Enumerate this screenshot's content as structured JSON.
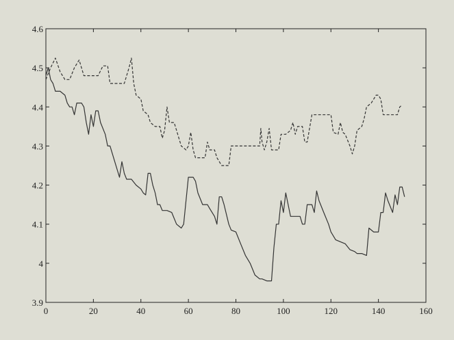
{
  "chart_data": {
    "type": "line",
    "title": "",
    "xlabel": "",
    "ylabel": "",
    "xlim": [
      0,
      160
    ],
    "ylim": [
      3.9,
      4.6
    ],
    "grid": false,
    "legend": "none",
    "colors": {
      "background": "#deded4",
      "axes": "#222222",
      "series": "#333333"
    },
    "x_ticks": [
      {
        "value": 0,
        "label": "0"
      },
      {
        "value": 20,
        "label": "20"
      },
      {
        "value": 40,
        "label": "40"
      },
      {
        "value": 60,
        "label": "60"
      },
      {
        "value": 80,
        "label": "80"
      },
      {
        "value": 100,
        "label": "100"
      },
      {
        "value": 120,
        "label": "120"
      },
      {
        "value": 140,
        "label": "140"
      },
      {
        "value": 160,
        "label": "160"
      }
    ],
    "y_ticks": [
      {
        "value": 3.9,
        "label": "3.9"
      },
      {
        "value": 4.0,
        "label": "4"
      },
      {
        "value": 4.1,
        "label": "4.1"
      },
      {
        "value": 4.2,
        "label": "4.2"
      },
      {
        "value": 4.3,
        "label": "4.3"
      },
      {
        "value": 4.4,
        "label": "4.4"
      },
      {
        "value": 4.5,
        "label": "4.5"
      },
      {
        "value": 4.6,
        "label": "4.6"
      }
    ],
    "series": [
      {
        "style": "dashed",
        "points": [
          [
            0,
            4.47
          ],
          [
            2,
            4.5
          ],
          [
            4,
            4.525
          ],
          [
            6,
            4.49
          ],
          [
            8,
            4.47
          ],
          [
            10,
            4.47
          ],
          [
            12,
            4.5
          ],
          [
            14,
            4.52
          ],
          [
            16,
            4.48
          ],
          [
            19,
            4.48
          ],
          [
            22,
            4.48
          ],
          [
            24,
            4.505
          ],
          [
            26,
            4.505
          ],
          [
            27,
            4.46
          ],
          [
            29,
            4.46
          ],
          [
            31,
            4.46
          ],
          [
            33,
            4.46
          ],
          [
            35,
            4.5
          ],
          [
            36,
            4.525
          ],
          [
            37,
            4.46
          ],
          [
            38,
            4.43
          ],
          [
            40,
            4.42
          ],
          [
            41,
            4.39
          ],
          [
            43,
            4.38
          ],
          [
            44,
            4.36
          ],
          [
            46,
            4.35
          ],
          [
            48,
            4.35
          ],
          [
            49,
            4.32
          ],
          [
            50,
            4.34
          ],
          [
            51,
            4.4
          ],
          [
            52,
            4.36
          ],
          [
            54,
            4.36
          ],
          [
            55,
            4.34
          ],
          [
            57,
            4.3
          ],
          [
            59,
            4.29
          ],
          [
            60,
            4.3
          ],
          [
            61,
            4.335
          ],
          [
            62,
            4.29
          ],
          [
            63,
            4.27
          ],
          [
            65,
            4.27
          ],
          [
            67,
            4.27
          ],
          [
            68,
            4.31
          ],
          [
            69,
            4.29
          ],
          [
            71,
            4.29
          ],
          [
            72,
            4.27
          ],
          [
            74,
            4.25
          ],
          [
            76,
            4.25
          ],
          [
            77,
            4.25
          ],
          [
            78,
            4.3
          ],
          [
            80,
            4.3
          ],
          [
            83,
            4.3
          ],
          [
            85,
            4.3
          ],
          [
            88,
            4.3
          ],
          [
            90,
            4.3
          ],
          [
            90.5,
            4.345
          ],
          [
            91,
            4.31
          ],
          [
            92,
            4.29
          ],
          [
            93,
            4.31
          ],
          [
            94,
            4.345
          ],
          [
            95,
            4.29
          ],
          [
            96,
            4.29
          ],
          [
            98,
            4.29
          ],
          [
            99,
            4.33
          ],
          [
            101,
            4.33
          ],
          [
            103,
            4.34
          ],
          [
            104,
            4.36
          ],
          [
            105,
            4.33
          ],
          [
            106,
            4.35
          ],
          [
            108,
            4.35
          ],
          [
            109,
            4.31
          ],
          [
            110,
            4.31
          ],
          [
            112,
            4.38
          ],
          [
            114,
            4.38
          ],
          [
            116,
            4.38
          ],
          [
            118,
            4.38
          ],
          [
            120,
            4.38
          ],
          [
            121,
            4.335
          ],
          [
            123,
            4.33
          ],
          [
            124,
            4.36
          ],
          [
            125,
            4.335
          ],
          [
            126,
            4.33
          ],
          [
            128,
            4.3
          ],
          [
            129,
            4.28
          ],
          [
            130,
            4.3
          ],
          [
            131,
            4.34
          ],
          [
            133,
            4.35
          ],
          [
            134,
            4.37
          ],
          [
            135,
            4.4
          ],
          [
            137,
            4.41
          ],
          [
            138,
            4.42
          ],
          [
            139,
            4.43
          ],
          [
            140,
            4.43
          ],
          [
            141,
            4.42
          ],
          [
            142,
            4.38
          ],
          [
            144,
            4.38
          ],
          [
            146,
            4.38
          ],
          [
            148,
            4.38
          ],
          [
            149,
            4.4
          ],
          [
            150,
            4.405
          ]
        ]
      },
      {
        "style": "solid",
        "points": [
          [
            0,
            4.48
          ],
          [
            1,
            4.5
          ],
          [
            2,
            4.47
          ],
          [
            3,
            4.46
          ],
          [
            4,
            4.44
          ],
          [
            6,
            4.44
          ],
          [
            8,
            4.43
          ],
          [
            9,
            4.41
          ],
          [
            10,
            4.4
          ],
          [
            11,
            4.4
          ],
          [
            12,
            4.38
          ],
          [
            13,
            4.41
          ],
          [
            15,
            4.41
          ],
          [
            16,
            4.4
          ],
          [
            17,
            4.36
          ],
          [
            18,
            4.33
          ],
          [
            19,
            4.38
          ],
          [
            20,
            4.35
          ],
          [
            21,
            4.39
          ],
          [
            22,
            4.39
          ],
          [
            23,
            4.36
          ],
          [
            25,
            4.33
          ],
          [
            26,
            4.3
          ],
          [
            27,
            4.3
          ],
          [
            29,
            4.26
          ],
          [
            31,
            4.22
          ],
          [
            32,
            4.26
          ],
          [
            33,
            4.23
          ],
          [
            34,
            4.215
          ],
          [
            36,
            4.215
          ],
          [
            38,
            4.2
          ],
          [
            40,
            4.19
          ],
          [
            41,
            4.18
          ],
          [
            42,
            4.175
          ],
          [
            43,
            4.23
          ],
          [
            44,
            4.23
          ],
          [
            45,
            4.2
          ],
          [
            46,
            4.18
          ],
          [
            47,
            4.15
          ],
          [
            48,
            4.15
          ],
          [
            49,
            4.135
          ],
          [
            51,
            4.135
          ],
          [
            53,
            4.13
          ],
          [
            55,
            4.1
          ],
          [
            57,
            4.09
          ],
          [
            58,
            4.1
          ],
          [
            60,
            4.22
          ],
          [
            62,
            4.22
          ],
          [
            63,
            4.21
          ],
          [
            64,
            4.18
          ],
          [
            66,
            4.15
          ],
          [
            68,
            4.15
          ],
          [
            69,
            4.14
          ],
          [
            71,
            4.12
          ],
          [
            72,
            4.1
          ],
          [
            73,
            4.17
          ],
          [
            74,
            4.17
          ],
          [
            75,
            4.15
          ],
          [
            77,
            4.1
          ],
          [
            78,
            4.085
          ],
          [
            80,
            4.08
          ],
          [
            82,
            4.05
          ],
          [
            84,
            4.02
          ],
          [
            86,
            4.0
          ],
          [
            88,
            3.97
          ],
          [
            90,
            3.96
          ],
          [
            91,
            3.96
          ],
          [
            93,
            3.955
          ],
          [
            95,
            3.955
          ],
          [
            96,
            4.04
          ],
          [
            97,
            4.1
          ],
          [
            98,
            4.1
          ],
          [
            99,
            4.16
          ],
          [
            100,
            4.13
          ],
          [
            101,
            4.18
          ],
          [
            102,
            4.15
          ],
          [
            103,
            4.12
          ],
          [
            105,
            4.12
          ],
          [
            107,
            4.12
          ],
          [
            108,
            4.1
          ],
          [
            109,
            4.1
          ],
          [
            110,
            4.15
          ],
          [
            111,
            4.15
          ],
          [
            112,
            4.15
          ],
          [
            113,
            4.13
          ],
          [
            114,
            4.185
          ],
          [
            115,
            4.16
          ],
          [
            117,
            4.13
          ],
          [
            119,
            4.1
          ],
          [
            120,
            4.08
          ],
          [
            122,
            4.06
          ],
          [
            124,
            4.055
          ],
          [
            126,
            4.05
          ],
          [
            128,
            4.035
          ],
          [
            130,
            4.03
          ],
          [
            131,
            4.025
          ],
          [
            133,
            4.025
          ],
          [
            135,
            4.02
          ],
          [
            136,
            4.09
          ],
          [
            138,
            4.08
          ],
          [
            140,
            4.08
          ],
          [
            141,
            4.13
          ],
          [
            142,
            4.13
          ],
          [
            143,
            4.18
          ],
          [
            144,
            4.16
          ],
          [
            146,
            4.13
          ],
          [
            147,
            4.175
          ],
          [
            148,
            4.15
          ],
          [
            149,
            4.195
          ],
          [
            150,
            4.195
          ],
          [
            151,
            4.17
          ]
        ]
      }
    ]
  }
}
